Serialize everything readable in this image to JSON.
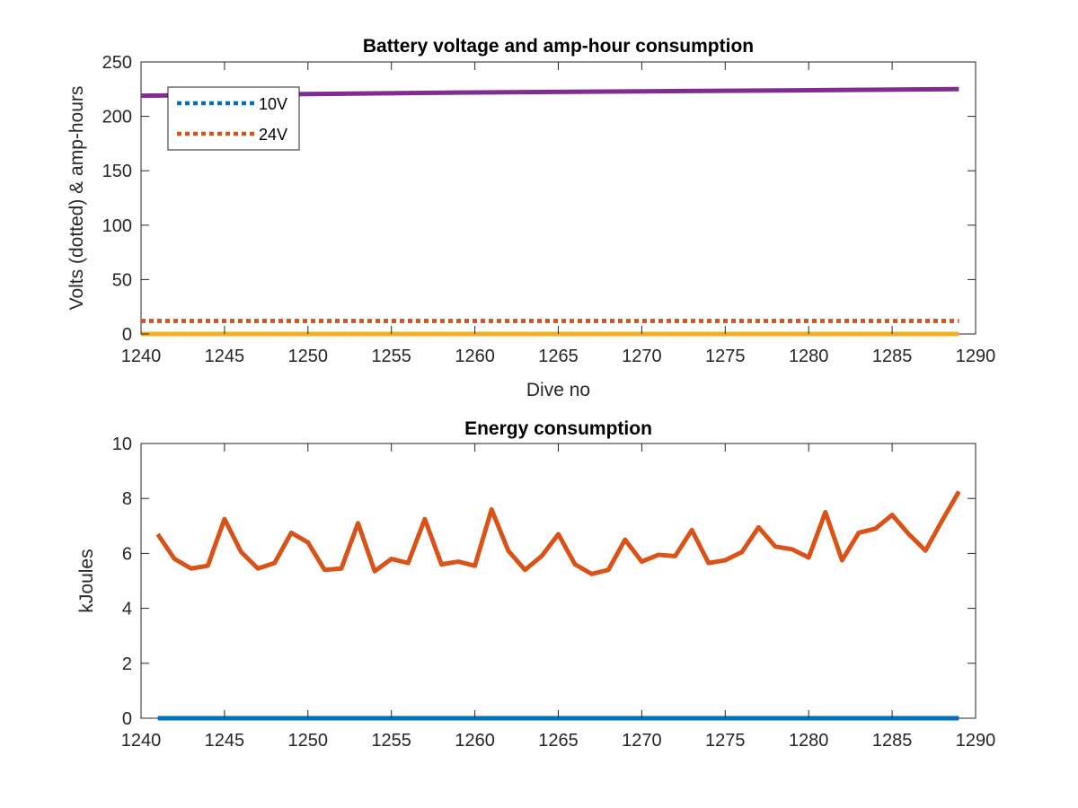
{
  "chart_data": [
    {
      "type": "line",
      "title": "Battery voltage and amp-hour consumption",
      "xlabel": "Dive no",
      "ylabel": "Volts (dotted) & amp-hours",
      "xlim": [
        1240,
        1290
      ],
      "ylim": [
        0,
        250
      ],
      "xticks": [
        1240,
        1245,
        1250,
        1255,
        1260,
        1265,
        1270,
        1275,
        1280,
        1285,
        1290
      ],
      "yticks": [
        0,
        50,
        100,
        150,
        200,
        250
      ],
      "grid": false,
      "legend_position": "top-left",
      "series": [
        {
          "name": "10V",
          "style": "dotted",
          "color": "#0072BD",
          "x": [
            1240,
            1289
          ],
          "y": [
            12,
            12
          ]
        },
        {
          "name": "24V",
          "style": "dotted",
          "color": "#D95319",
          "x": [
            1240,
            1289
          ],
          "y": [
            12,
            12
          ]
        },
        {
          "style": "solid",
          "color": "#EDB120",
          "x": [
            1240,
            1289
          ],
          "y": [
            0,
            0
          ]
        },
        {
          "style": "solid",
          "color": "#7E2F8E",
          "x": [
            1240,
            1250,
            1260,
            1270,
            1280,
            1289
          ],
          "y": [
            219,
            220.5,
            222,
            223,
            224,
            225
          ]
        }
      ]
    },
    {
      "type": "line",
      "title": "Energy consumption",
      "xlabel": "",
      "ylabel": "kJoules",
      "xlim": [
        1240,
        1290
      ],
      "ylim": [
        0,
        10
      ],
      "xticks": [
        1240,
        1245,
        1250,
        1255,
        1260,
        1265,
        1270,
        1275,
        1280,
        1285,
        1290
      ],
      "yticks": [
        0,
        2,
        4,
        6,
        8,
        10
      ],
      "grid": false,
      "series": [
        {
          "style": "solid",
          "color": "#0072BD",
          "x": [
            1241,
            1289
          ],
          "y": [
            0,
            0
          ]
        },
        {
          "style": "solid",
          "color": "#D95319",
          "x": [
            1241,
            1242,
            1243,
            1244,
            1245,
            1246,
            1247,
            1248,
            1249,
            1250,
            1251,
            1252,
            1253,
            1254,
            1255,
            1256,
            1257,
            1258,
            1259,
            1260,
            1261,
            1262,
            1263,
            1264,
            1265,
            1266,
            1267,
            1268,
            1269,
            1270,
            1271,
            1272,
            1273,
            1274,
            1275,
            1276,
            1277,
            1278,
            1279,
            1280,
            1281,
            1282,
            1283,
            1284,
            1285,
            1286,
            1287,
            1288,
            1289
          ],
          "y": [
            6.7,
            5.8,
            5.45,
            5.55,
            7.25,
            6.05,
            5.45,
            5.65,
            6.75,
            6.4,
            5.4,
            5.45,
            7.1,
            5.35,
            5.8,
            5.65,
            7.25,
            5.6,
            5.7,
            5.55,
            7.6,
            6.1,
            5.4,
            5.9,
            6.7,
            5.6,
            5.25,
            5.4,
            6.5,
            5.7,
            5.95,
            5.9,
            6.85,
            5.65,
            5.75,
            6.05,
            6.95,
            6.25,
            6.15,
            5.85,
            7.5,
            5.75,
            6.75,
            6.9,
            7.4,
            6.7,
            6.1,
            7.2,
            8.25
          ]
        }
      ]
    }
  ]
}
